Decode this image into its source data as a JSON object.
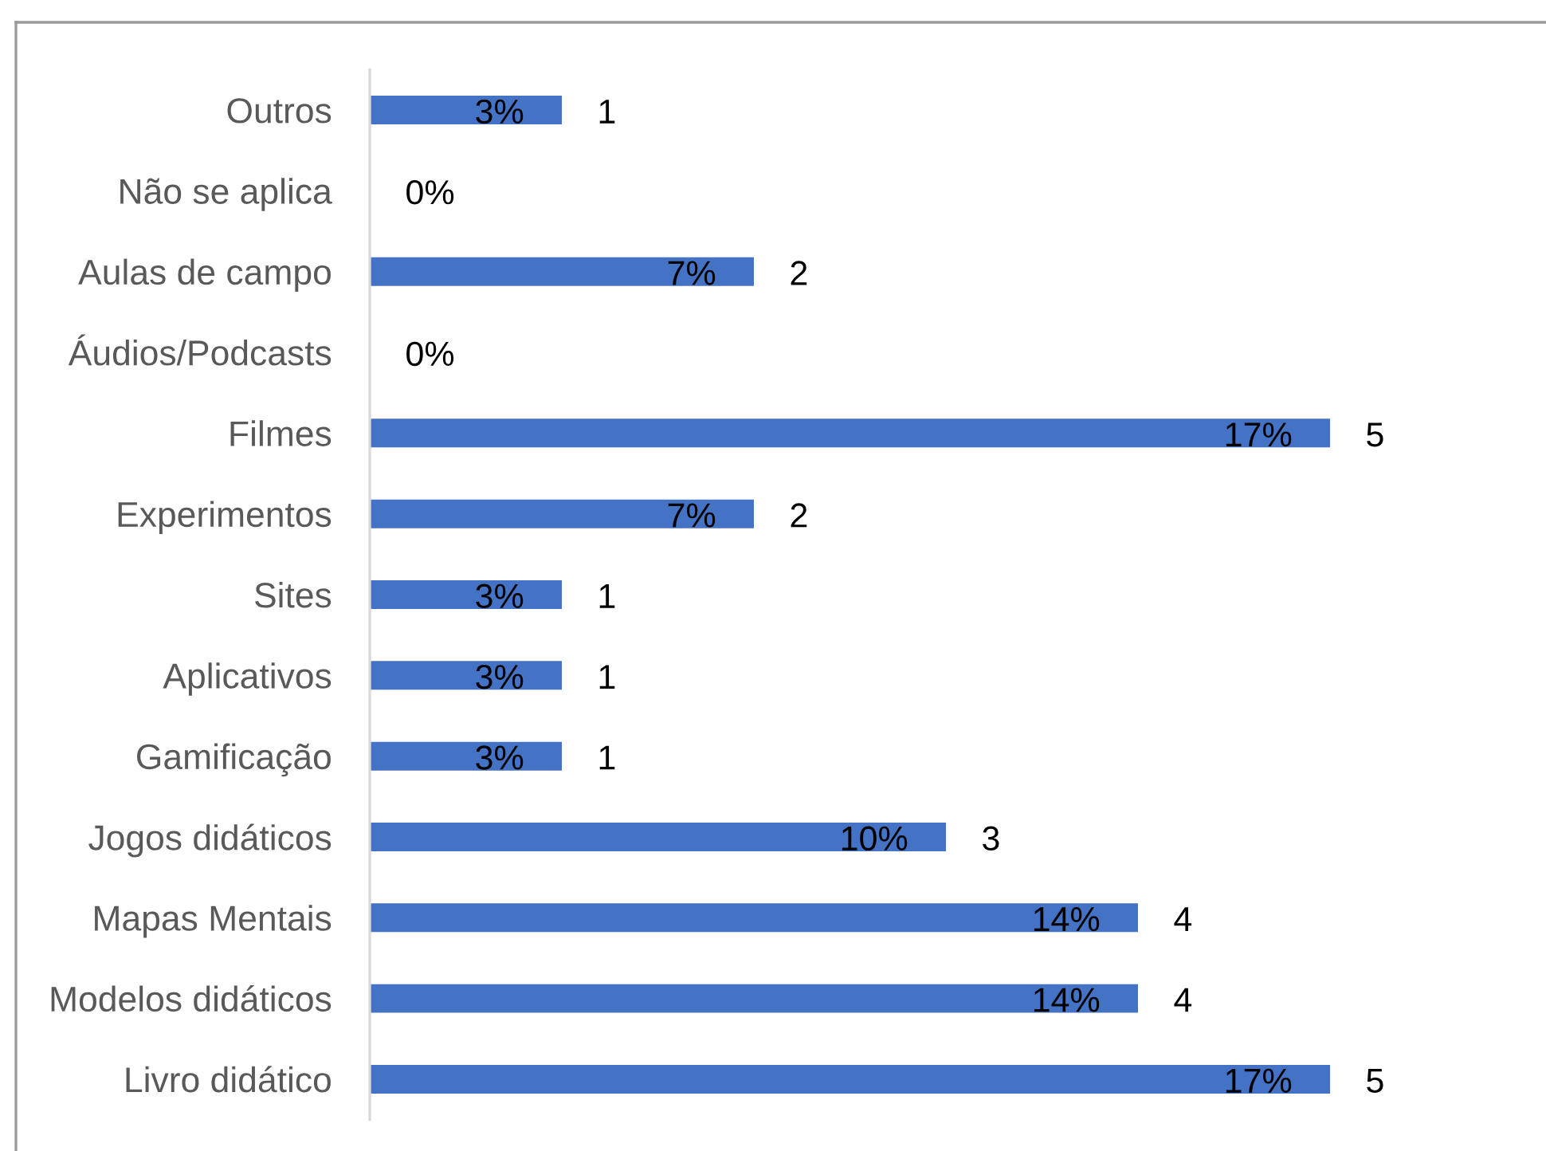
{
  "chart_data": {
    "type": "bar",
    "orientation": "horizontal",
    "categories": [
      "Outros",
      "Não se aplica",
      "Aulas de campo",
      "Áudios/Podcasts",
      "Filmes",
      "Experimentos",
      "Sites",
      "Aplicativos",
      "Gamificação",
      "Jogos didáticos",
      "Mapas Mentais",
      "Modelos didáticos",
      "Livro didático"
    ],
    "values": [
      1,
      0,
      2,
      0,
      5,
      2,
      1,
      1,
      1,
      3,
      4,
      4,
      5
    ],
    "value_labels": [
      "1",
      null,
      "2",
      null,
      "5",
      "2",
      "1",
      "1",
      "1",
      "3",
      "4",
      "4",
      "5"
    ],
    "color": "#4472c4",
    "tick_labels": "y",
    "annotations": [
      {
        "text": "3%",
        "x": 1,
        "y": "Outros"
      },
      {
        "text": "0%",
        "x": 0,
        "y": "Não se aplica"
      },
      {
        "text": "7%",
        "x": 2,
        "y": "Aulas de campo"
      },
      {
        "text": "0%",
        "x": 0,
        "y": "Áudios/Podcasts"
      },
      {
        "text": "17%",
        "x": 5,
        "y": "Filmes"
      },
      {
        "text": "7%",
        "x": 2,
        "y": "Experimentos"
      },
      {
        "text": "3%",
        "x": 1,
        "y": "Sites"
      },
      {
        "text": "3%",
        "x": 1,
        "y": "Aplicativos"
      },
      {
        "text": "3%",
        "x": 1,
        "y": "Gamificação"
      },
      {
        "text": "10%",
        "x": 3,
        "y": "Jogos didáticos"
      },
      {
        "text": "14%",
        "x": 4,
        "y": "Mapas Mentais"
      },
      {
        "text": "14%",
        "x": 4,
        "y": "Modelos didáticos"
      },
      {
        "text": "17%",
        "x": 5,
        "y": "Livro didático"
      }
    ]
  }
}
